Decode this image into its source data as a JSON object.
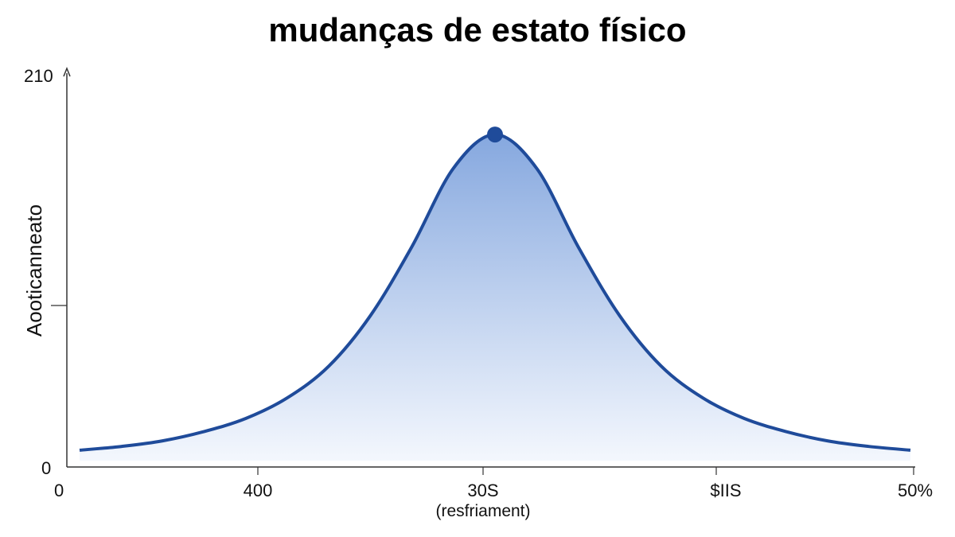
{
  "chart_data": {
    "type": "area",
    "title": "mudanças de estato físico",
    "xlabel": "(resfriament)",
    "ylabel": "Aooticanneato",
    "y_ticks": [
      "210",
      "0"
    ],
    "x_ticks": [
      "400",
      "30S",
      "$IIS",
      "50%"
    ],
    "x_origin_label": "0",
    "ylim": [
      0,
      210
    ],
    "grid": false,
    "peak": {
      "x_label": "30S",
      "y": 178
    },
    "x": [
      0,
      5,
      10,
      15,
      20,
      25,
      30,
      35,
      40,
      45,
      50,
      55,
      60,
      65,
      70,
      75,
      80,
      85,
      90,
      95,
      100
    ],
    "y": [
      9,
      11,
      14,
      19,
      26,
      37,
      54,
      81,
      118,
      160,
      178,
      160,
      118,
      81,
      54,
      37,
      26,
      19,
      14,
      11,
      9
    ],
    "colors": {
      "line": "#1f4b9a",
      "fill_top": "#7fa3dd",
      "fill_bottom": "#f2f6fd",
      "marker": "#1f4b9a"
    }
  }
}
